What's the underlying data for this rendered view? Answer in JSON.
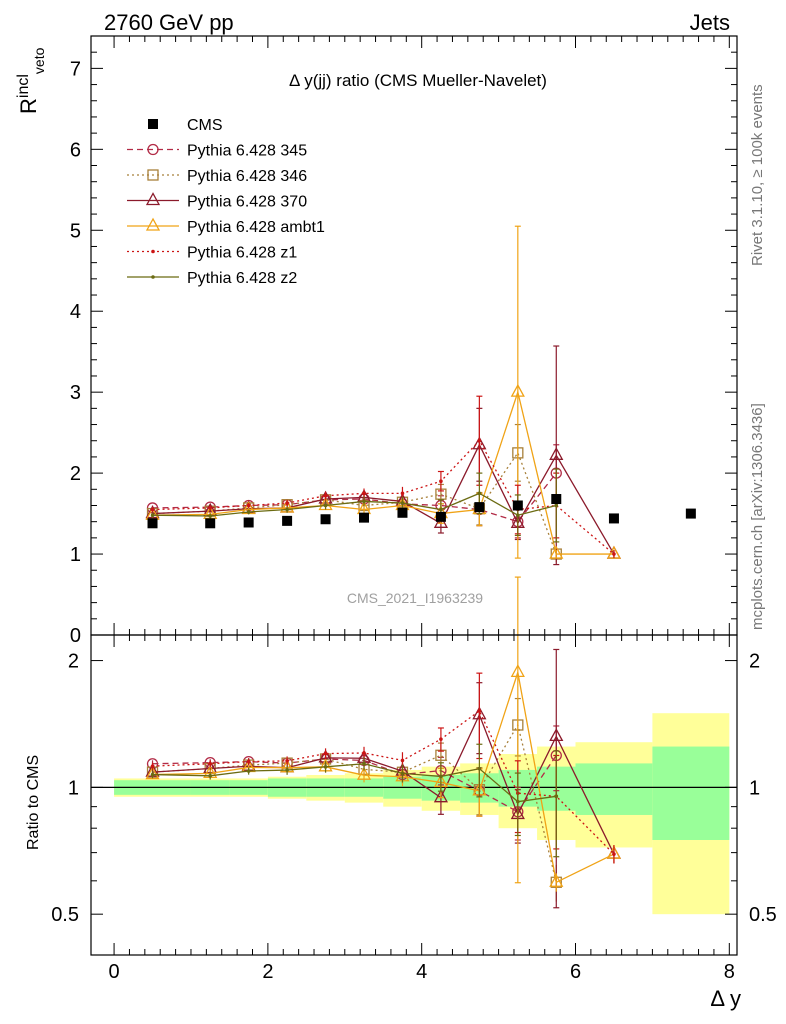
{
  "header": {
    "left": "2760 GeV pp",
    "right": "Jets"
  },
  "side_text": {
    "rivet": "Rivet 3.1.10, ≥ 100k events",
    "url": "mcplots.cern.ch [arXiv:1306.3436]"
  },
  "watermark": "CMS_2021_I1963239",
  "chart_data": {
    "type": "line",
    "title": "Δ y(jj) ratio (CMS Mueller-Navelet)",
    "xlabel": "Δ y",
    "ylabel_main": "Rincl_veto",
    "ylabel_ratio": "Ratio to CMS",
    "xlim": [
      -0.3,
      8.1
    ],
    "ylim_main": [
      0,
      7.4
    ],
    "ylim_ratio": [
      0.4,
      2.3
    ],
    "ratio_scale": "log",
    "x_ticks": [
      "0",
      "2",
      "4",
      "6",
      "8"
    ],
    "y_ticks_main": [
      "0",
      "1",
      "2",
      "3",
      "4",
      "5",
      "6",
      "7"
    ],
    "y_ticks_ratio": [
      "0.5",
      "1",
      "2"
    ],
    "legend_position": "top-left",
    "data": {
      "name": "CMS",
      "x": [
        0.5,
        1.25,
        1.75,
        2.25,
        2.75,
        3.25,
        3.75,
        4.25,
        4.75,
        5.25,
        5.75,
        6.5,
        7.5
      ],
      "y": [
        1.38,
        1.38,
        1.39,
        1.41,
        1.43,
        1.45,
        1.51,
        1.46,
        1.58,
        1.6,
        1.68,
        1.44,
        1.5
      ],
      "bin_edges": [
        0,
        1,
        1.5,
        2,
        2.5,
        3,
        3.5,
        4,
        4.5,
        5,
        5.5,
        6,
        7,
        8
      ],
      "band_inner": [
        0.04,
        0.04,
        0.04,
        0.05,
        0.05,
        0.05,
        0.06,
        0.07,
        0.08,
        0.1,
        0.12,
        0.14,
        0.25
      ],
      "band_outer": [
        0.05,
        0.05,
        0.05,
        0.06,
        0.07,
        0.08,
        0.1,
        0.12,
        0.14,
        0.2,
        0.25,
        0.28,
        0.5
      ]
    },
    "series": [
      {
        "name": "Pythia 6.428 345",
        "color": "#b22b46",
        "dash": "6,4",
        "marker": "circle",
        "x": [
          0.5,
          1.25,
          1.75,
          2.25,
          2.75,
          3.25,
          3.75,
          4.25,
          4.75,
          5.25,
          5.75
        ],
        "y": [
          1.57,
          1.58,
          1.6,
          1.61,
          1.67,
          1.68,
          1.62,
          1.6,
          1.55,
          1.4,
          2.0
        ],
        "err": [
          0.03,
          0.03,
          0.03,
          0.04,
          0.05,
          0.06,
          0.08,
          0.12,
          0.2,
          0.2,
          0.35
        ]
      },
      {
        "name": "Pythia 6.428 346",
        "color": "#a8803a",
        "dash": "2,3",
        "marker": "square",
        "x": [
          0.5,
          1.25,
          1.75,
          2.25,
          2.75,
          3.25,
          3.75,
          4.25,
          4.75,
          5.25,
          5.75
        ],
        "y": [
          1.5,
          1.53,
          1.57,
          1.61,
          1.67,
          1.6,
          1.64,
          1.74,
          1.56,
          2.25,
          1.0
        ],
        "err": [
          0.03,
          0.03,
          0.03,
          0.04,
          0.05,
          0.06,
          0.08,
          0.12,
          0.2,
          0.35,
          0.1
        ]
      },
      {
        "name": "Pythia 6.428 370",
        "color": "#8b1a2b",
        "dash": "",
        "marker": "triangle",
        "x": [
          0.5,
          1.25,
          1.75,
          2.25,
          2.75,
          3.25,
          3.75,
          4.25,
          4.75,
          5.25,
          5.75,
          6.5
        ],
        "y": [
          1.5,
          1.53,
          1.56,
          1.57,
          1.68,
          1.7,
          1.65,
          1.38,
          2.35,
          1.38,
          2.22,
          1.0
        ],
        "err": [
          0.03,
          0.03,
          0.03,
          0.04,
          0.05,
          0.06,
          0.08,
          0.12,
          0.45,
          0.2,
          1.35,
          0.05
        ]
      },
      {
        "name": "Pythia 6.428 ambt1",
        "color": "#f0a316",
        "dash": "",
        "marker": "triangle",
        "x": [
          0.5,
          1.25,
          1.75,
          2.25,
          2.75,
          3.25,
          3.75,
          4.25,
          4.75,
          5.25,
          5.75,
          6.5
        ],
        "y": [
          1.48,
          1.49,
          1.55,
          1.57,
          1.6,
          1.55,
          1.6,
          1.5,
          1.55,
          3.0,
          1.0,
          1.0
        ],
        "err": [
          0.03,
          0.03,
          0.03,
          0.04,
          0.05,
          0.06,
          0.08,
          0.12,
          0.2,
          2.05,
          0.05,
          0.05
        ]
      },
      {
        "name": "Pythia 6.428 z1",
        "color": "#cc1515",
        "dash": "2,3",
        "marker": "dot",
        "x": [
          0.5,
          1.25,
          1.75,
          2.25,
          2.75,
          3.25,
          3.75,
          4.25,
          4.75,
          5.25,
          5.75,
          6.5
        ],
        "y": [
          1.55,
          1.57,
          1.6,
          1.63,
          1.72,
          1.75,
          1.75,
          1.9,
          2.4,
          1.55,
          1.6,
          1.0
        ],
        "err": [
          0.03,
          0.03,
          0.03,
          0.04,
          0.05,
          0.06,
          0.08,
          0.12,
          0.55,
          0.3,
          0.4,
          0.05
        ]
      },
      {
        "name": "Pythia 6.428 z2",
        "color": "#6b6b12",
        "dash": "",
        "marker": "dot",
        "x": [
          0.5,
          1.25,
          1.75,
          2.25,
          2.75,
          3.25,
          3.75,
          4.25,
          4.75,
          5.25,
          5.75
        ],
        "y": [
          1.48,
          1.47,
          1.52,
          1.55,
          1.6,
          1.65,
          1.63,
          1.55,
          1.75,
          1.48,
          1.6
        ],
        "err": [
          0.03,
          0.03,
          0.03,
          0.04,
          0.05,
          0.06,
          0.08,
          0.12,
          0.25,
          0.25,
          0.45
        ]
      }
    ]
  }
}
